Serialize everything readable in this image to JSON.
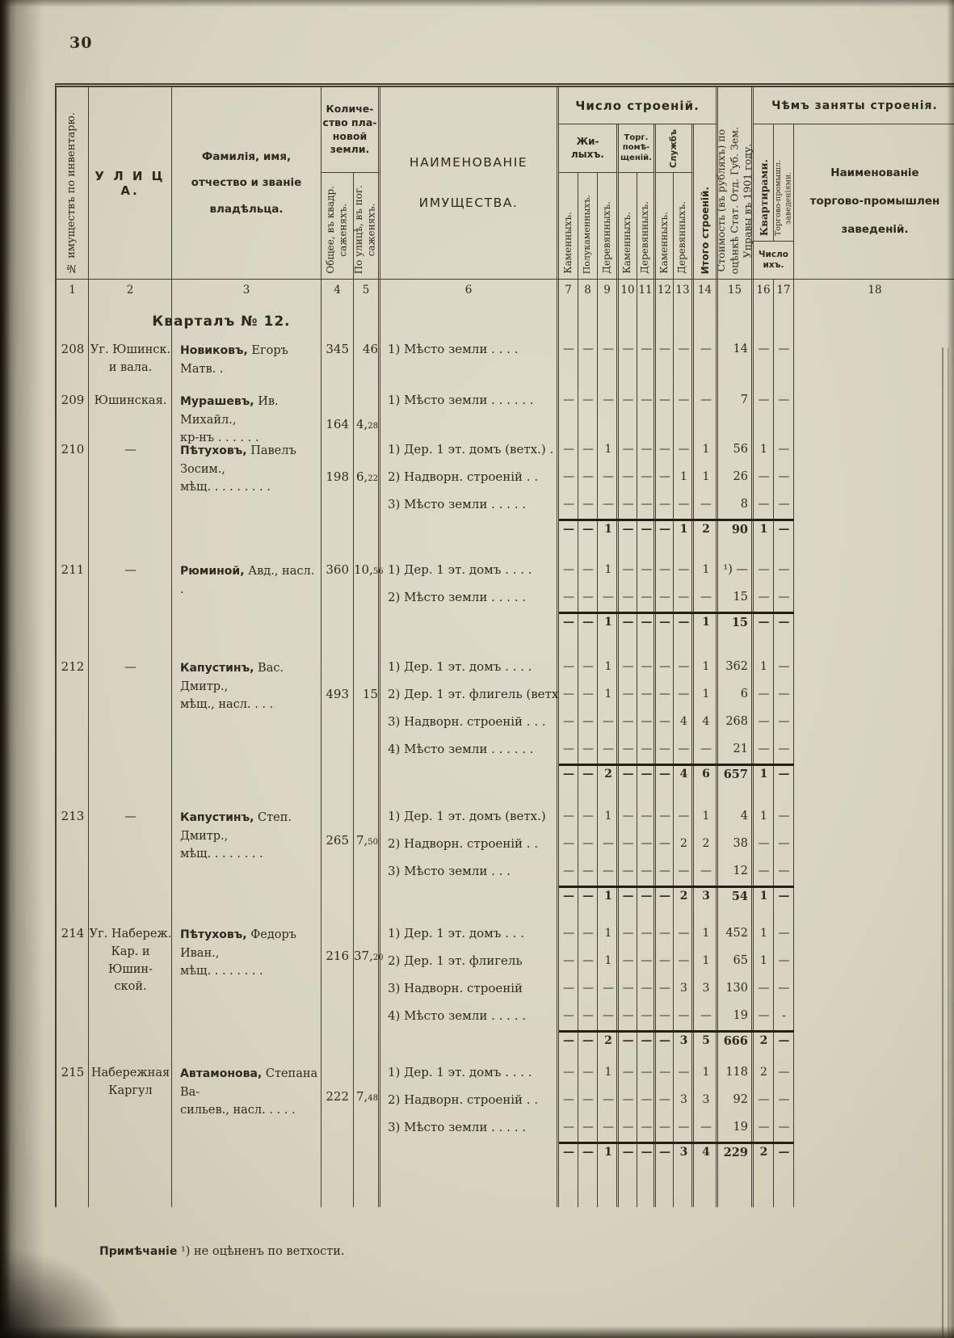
{
  "page": {
    "number": "30",
    "footnote_label": "Примѣчаніе",
    "footnote_text": "¹) не оцѣненъ по ветхости."
  },
  "table": {
    "headers": {
      "col1": "№ имуществъ по инвентарю.",
      "col2": "У Л И Ц А.",
      "col3": "Фамилія, имя,\nотчество и званіе\nвладѣльца.",
      "land_group": "Количе-\nство пла-\nновой\nземли.",
      "col4": "Общее, въ квадр.\nсаженяхъ.",
      "col5": "По улицѣ, въ пог.\nсаженяхъ.",
      "col6": "НАИМЕНОВАНІЕ\nИМУЩЕСТВА.",
      "buildings_group": "Число строеній.",
      "residential_group": "Жи-\nлыхъ.",
      "trade_group": "Торг.\nпомѣ-\nщеній.",
      "services_group": "Службъ",
      "col7": "Каменныхъ.",
      "col8": "Полукаменныхъ.",
      "col9": "Деревянныхъ.",
      "col10": "Каменныхъ.",
      "col11": "Деревянныхъ.",
      "col12": "Каменныхъ.",
      "col13": "Деревянныхъ.",
      "col14": "Итого строеній.",
      "col15": "Стоимость (въ рубляхъ) по\nоцѣнкѣ Стат. Отд. Губ. Зем.\nУправы въ 1901 году.",
      "occupied_group": "Чѣмъ заняты строенія.",
      "count_group": "Число\nихъ.",
      "col16": "Квартирами.",
      "col17": "Торгово-промышл.\nзаведеніями.",
      "col18": "Наименованіе\nторгово-промышлен\nзаведеній."
    },
    "column_numbers": [
      "1",
      "2",
      "3",
      "4",
      "5",
      "6",
      "7",
      "8",
      "9",
      "10",
      "11",
      "12",
      "13",
      "14",
      "15",
      "16",
      "17",
      "18"
    ],
    "section_title": "Кварталъ № 12.",
    "properties": [
      {
        "number": "208",
        "street": "Уг. Юшинск.\nи вала.",
        "owner_bold": "Новиковъ,",
        "owner_rest": "Егоръ Матв. .",
        "area": "345",
        "frontage": "46",
        "items": [
          {
            "label": "1) Мѣсто земли . . .    .",
            "c": [
              "—",
              "—",
              "—",
              "—",
              "—",
              "—",
              "—"
            ],
            "total": "—",
            "value": "14",
            "apartments": "—",
            "trade": "—"
          }
        ],
        "totals": null
      },
      {
        "number": "209",
        "street": "Юшинская.",
        "owner_bold": "Мурашевъ,",
        "owner_rest": "Ив. Михайл.,\nкр-нъ  .  .  .  .  .  .",
        "area": "164",
        "frontage": "4,28",
        "items": [
          {
            "label": "1) Мѣсто земли . . . . . .",
            "c": [
              "—",
              "—",
              "—",
              "—",
              "—",
              "—",
              "—"
            ],
            "total": "—",
            "value": "7",
            "apartments": "—",
            "trade": "—"
          }
        ],
        "totals": null
      },
      {
        "number": "210",
        "street": "—",
        "owner_bold": "Пѣтуховъ,",
        "owner_rest": "Павелъ Зосим.,\nмѣщ. .  .  .  .  .  .  .  .",
        "area": "198",
        "frontage": "6,22",
        "items": [
          {
            "label": "1) Дер. 1 эт. домъ (ветх.) .",
            "c": [
              "—",
              "—",
              "1",
              "—",
              "—",
              "—",
              "—"
            ],
            "total": "1",
            "value": "56",
            "apartments": "1",
            "trade": "—"
          },
          {
            "label": "2) Надворн. строеній .    .",
            "c": [
              "—",
              "—",
              "—",
              "—",
              "—",
              "—",
              "1"
            ],
            "total": "1",
            "value": "26",
            "apartments": "—",
            "trade": "—"
          },
          {
            "label": "3) Мѣсто земли . .  .   .  .",
            "c": [
              "—",
              "—",
              "—",
              "—",
              "—",
              "—",
              "—"
            ],
            "total": "—",
            "value": "8",
            "apartments": "—",
            "trade": "—"
          }
        ],
        "totals": {
          "c": [
            "—",
            "—",
            "1",
            "—",
            "—",
            "—",
            "1"
          ],
          "total": "2",
          "value": "90",
          "apartments": "1",
          "trade": "—"
        }
      },
      {
        "number": "211",
        "street": "—",
        "owner_bold": "Рюминой,",
        "owner_rest": "Авд., насл. .",
        "area": "360",
        "frontage": "10,56",
        "items": [
          {
            "label": "1) Дер. 1 эт. домъ .  .  .  .",
            "c": [
              "—",
              "—",
              "1",
              "—",
              "—",
              "—",
              "—"
            ],
            "total": "1",
            "value": "¹) —",
            "apartments": "—",
            "trade": "—"
          },
          {
            "label": "2) Мѣсто земли . . . . .",
            "c": [
              "—",
              "—",
              "—",
              "—",
              "—",
              "—",
              "—"
            ],
            "total": "—",
            "value": "15",
            "apartments": "—",
            "trade": "—"
          }
        ],
        "totals": {
          "c": [
            "—",
            "—",
            "1",
            "—",
            "—",
            "—",
            "—"
          ],
          "total": "1",
          "value": "15",
          "apartments": "—",
          "trade": "—"
        }
      },
      {
        "number": "212",
        "street": "—",
        "owner_bold": "Капустинъ,",
        "owner_rest": "Вас. Дмитр.,\nмѣщ., насл. .    .  .",
        "area": "493",
        "frontage": "15",
        "items": [
          {
            "label": "1) Дер. 1 эт. домъ  .  . . .",
            "c": [
              "—",
              "—",
              "1",
              "—",
              "—",
              "—",
              "—"
            ],
            "total": "1",
            "value": "362",
            "apartments": "1",
            "trade": "—"
          },
          {
            "label": "2) Дер. 1 эт. флигель (ветх.).",
            "c": [
              "—",
              "—",
              "1",
              "—",
              "—",
              "—",
              "—"
            ],
            "total": "1",
            "value": "6",
            "apartments": "—",
            "trade": "—"
          },
          {
            "label": "3) Надворн. строеній . . .",
            "c": [
              "—",
              "—",
              "—",
              "—",
              "—",
              "—",
              "4"
            ],
            "total": "4",
            "value": "268",
            "apartments": "—",
            "trade": "—"
          },
          {
            "label": "4) Мѣсто земли . . . . . .",
            "c": [
              "—",
              "—",
              "—",
              "—",
              "—",
              "—",
              "—"
            ],
            "total": "—",
            "value": "21",
            "apartments": "—",
            "trade": "—"
          }
        ],
        "totals": {
          "c": [
            "—",
            "—",
            "2",
            "—",
            "—",
            "—",
            "4"
          ],
          "total": "6",
          "value": "657",
          "apartments": "1",
          "trade": "—"
        }
      },
      {
        "number": "213",
        "street": "—",
        "owner_bold": "Капустинъ,",
        "owner_rest": "Степ. Дмитр.,\nмѣщ.   .  .  .  .  .  .  .",
        "area": "265",
        "frontage": "7,50",
        "items": [
          {
            "label": "1) Дер. 1 эт. домъ (ветх.)",
            "c": [
              "—",
              "—",
              "1",
              "—",
              "—",
              "—",
              "—"
            ],
            "total": "1",
            "value": "4",
            "apartments": "1",
            "trade": "—"
          },
          {
            "label": "2) Надворн. строеній . .",
            "c": [
              "—",
              "—",
              "—",
              "—",
              "—",
              "—",
              "2"
            ],
            "total": "2",
            "value": "38",
            "apartments": "—",
            "trade": "—"
          },
          {
            "label": "3) Мѣсто земли   . . .",
            "c": [
              "—",
              "—",
              "—",
              "—",
              "—",
              "—",
              "—"
            ],
            "total": "—",
            "value": "12",
            "apartments": "—",
            "trade": "—"
          }
        ],
        "totals": {
          "c": [
            "—",
            "—",
            "1",
            "—",
            "—",
            "—",
            "2"
          ],
          "total": "3",
          "value": "54",
          "apartments": "1",
          "trade": "—"
        }
      },
      {
        "number": "214",
        "street": "Уг. Набереж.\nКар. и Юшин-\nской.",
        "owner_bold": "Пѣтуховъ,",
        "owner_rest": "Федоръ Иван.,\nмѣщ. .   .  .  .  .  .  .",
        "area": "216",
        "frontage": "37,20",
        "items": [
          {
            "label": "1) Дер. 1 эт. домъ .   . .",
            "c": [
              "—",
              "—",
              "1",
              "—",
              "—",
              "—",
              "—"
            ],
            "total": "1",
            "value": "452",
            "apartments": "1",
            "trade": "—"
          },
          {
            "label": "2) Дер. 1 эт. флигель",
            "c": [
              "—",
              "—",
              "1",
              "—",
              "—",
              "—",
              "—"
            ],
            "total": "1",
            "value": "65",
            "apartments": "1",
            "trade": "—"
          },
          {
            "label": "3) Надворн. строеній",
            "c": [
              "—",
              "—",
              "—",
              "—",
              "—",
              "—",
              "3"
            ],
            "total": "3",
            "value": "130",
            "apartments": "—",
            "trade": "—"
          },
          {
            "label": "4) Мѣсто земли . . . . .",
            "c": [
              "—",
              "—",
              "—",
              "—",
              "—",
              "—",
              "—"
            ],
            "total": "—",
            "value": "19",
            "apartments": "—",
            "trade": "-"
          }
        ],
        "totals": {
          "c": [
            "—",
            "—",
            "2",
            "—",
            "—",
            "—",
            "3"
          ],
          "total": "5",
          "value": "666",
          "apartments": "2",
          "trade": "—"
        }
      },
      {
        "number": "215",
        "street": "Набережная\nКаргул",
        "owner_bold": "Автамонова,",
        "owner_rest": "Степана Ва-\nсильев., насл. .  .  .  .",
        "area": "222",
        "frontage": "7,48",
        "items": [
          {
            "label": "1) Дер. 1 эт. домъ .  . . .",
            "c": [
              "—",
              "—",
              "1",
              "—",
              "—",
              "—",
              "—"
            ],
            "total": "1",
            "value": "118",
            "apartments": "2",
            "trade": "—"
          },
          {
            "label": "2) Надворн. строеній . .",
            "c": [
              "—",
              "—",
              "—",
              "—",
              "—",
              "—",
              "3"
            ],
            "total": "3",
            "value": "92",
            "apartments": "—",
            "trade": "—"
          },
          {
            "label": "3) Мѣсто земли . . . . .",
            "c": [
              "—",
              "—",
              "—",
              "—",
              "—",
              "—",
              "—"
            ],
            "total": "—",
            "value": "19",
            "apartments": "—",
            "trade": "—"
          }
        ],
        "totals": {
          "c": [
            "—",
            "—",
            "1",
            "—",
            "—",
            "—",
            "3"
          ],
          "total": "4",
          "value": "229",
          "apartments": "2",
          "trade": "—"
        }
      }
    ]
  }
}
